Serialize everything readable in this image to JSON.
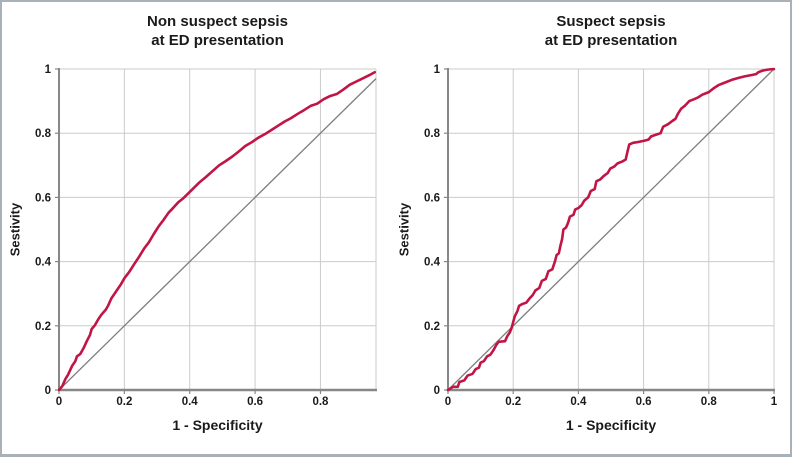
{
  "figure": {
    "background": "#FFFFFF",
    "border_color": "#A9B0B8"
  },
  "colors": {
    "curve": "#C01545",
    "reference_line": "#7D7D7D",
    "grid": "#CBCBCB",
    "axis": "#878787",
    "text": "#1A1A1A"
  },
  "chart_data": [
    {
      "type": "line",
      "title": "Non suspect sepsis\nat ED presentation",
      "xlabel": "1 - Specificity",
      "ylabel": "Sestivity",
      "xlim": [
        0,
        0.97
      ],
      "ylim": [
        0,
        1
      ],
      "x_ticks": [
        0,
        0.2,
        0.4,
        0.6,
        0.8
      ],
      "y_ticks": [
        0,
        0.2,
        0.4,
        0.6,
        0.8,
        1
      ],
      "grid": true,
      "legend": "none",
      "series": [
        {
          "name": "ROC curve",
          "color": "#C01545",
          "points": [
            [
              0,
              0
            ],
            [
              0.01,
              0.012
            ],
            [
              0.02,
              0.035
            ],
            [
              0.028,
              0.048
            ],
            [
              0.04,
              0.075
            ],
            [
              0.05,
              0.09
            ],
            [
              0.055,
              0.105
            ],
            [
              0.065,
              0.112
            ],
            [
              0.075,
              0.13
            ],
            [
              0.085,
              0.152
            ],
            [
              0.095,
              0.172
            ],
            [
              0.1,
              0.19
            ],
            [
              0.11,
              0.202
            ],
            [
              0.12,
              0.22
            ],
            [
              0.13,
              0.235
            ],
            [
              0.143,
              0.25
            ],
            [
              0.15,
              0.262
            ],
            [
              0.16,
              0.285
            ],
            [
              0.17,
              0.3
            ],
            [
              0.18,
              0.315
            ],
            [
              0.19,
              0.33
            ],
            [
              0.2,
              0.348
            ],
            [
              0.215,
              0.368
            ],
            [
              0.23,
              0.392
            ],
            [
              0.245,
              0.415
            ],
            [
              0.26,
              0.44
            ],
            [
              0.275,
              0.46
            ],
            [
              0.29,
              0.486
            ],
            [
              0.305,
              0.51
            ],
            [
              0.32,
              0.53
            ],
            [
              0.335,
              0.552
            ],
            [
              0.35,
              0.568
            ],
            [
              0.365,
              0.585
            ],
            [
              0.38,
              0.597
            ],
            [
              0.395,
              0.612
            ],
            [
              0.41,
              0.627
            ],
            [
              0.43,
              0.647
            ],
            [
              0.45,
              0.664
            ],
            [
              0.47,
              0.682
            ],
            [
              0.49,
              0.7
            ],
            [
              0.51,
              0.713
            ],
            [
              0.53,
              0.727
            ],
            [
              0.55,
              0.743
            ],
            [
              0.57,
              0.76
            ],
            [
              0.59,
              0.772
            ],
            [
              0.61,
              0.786
            ],
            [
              0.63,
              0.797
            ],
            [
              0.65,
              0.81
            ],
            [
              0.67,
              0.823
            ],
            [
              0.69,
              0.836
            ],
            [
              0.71,
              0.847
            ],
            [
              0.73,
              0.86
            ],
            [
              0.75,
              0.872
            ],
            [
              0.77,
              0.885
            ],
            [
              0.79,
              0.892
            ],
            [
              0.81,
              0.906
            ],
            [
              0.83,
              0.916
            ],
            [
              0.85,
              0.922
            ],
            [
              0.87,
              0.936
            ],
            [
              0.89,
              0.951
            ],
            [
              0.91,
              0.961
            ],
            [
              0.93,
              0.971
            ],
            [
              0.95,
              0.981
            ],
            [
              0.966,
              0.99
            ]
          ]
        },
        {
          "name": "Reference line",
          "color": "#7D7D7D",
          "points": [
            [
              0,
              0
            ],
            [
              0.97,
              0.97
            ]
          ]
        }
      ]
    },
    {
      "type": "line",
      "title": "Suspect sepsis\nat ED presentation",
      "xlabel": "1 - Specificity",
      "ylabel": "Sestivity",
      "xlim": [
        0,
        1
      ],
      "ylim": [
        0,
        1
      ],
      "x_ticks": [
        0,
        0.2,
        0.4,
        0.6,
        0.8,
        1
      ],
      "y_ticks": [
        0,
        0.2,
        0.4,
        0.6,
        0.8,
        1
      ],
      "grid": true,
      "legend": "none",
      "series": [
        {
          "name": "ROC curve",
          "color": "#C01545",
          "points": [
            [
              0,
              0
            ],
            [
              0.015,
              0.01
            ],
            [
              0.03,
              0.01
            ],
            [
              0.035,
              0.025
            ],
            [
              0.05,
              0.03
            ],
            [
              0.06,
              0.045
            ],
            [
              0.075,
              0.05
            ],
            [
              0.085,
              0.065
            ],
            [
              0.095,
              0.07
            ],
            [
              0.1,
              0.085
            ],
            [
              0.11,
              0.09
            ],
            [
              0.12,
              0.105
            ],
            [
              0.13,
              0.11
            ],
            [
              0.14,
              0.125
            ],
            [
              0.148,
              0.14
            ],
            [
              0.155,
              0.15
            ],
            [
              0.175,
              0.152
            ],
            [
              0.182,
              0.168
            ],
            [
              0.19,
              0.18
            ],
            [
              0.196,
              0.196
            ],
            [
              0.2,
              0.212
            ],
            [
              0.205,
              0.23
            ],
            [
              0.213,
              0.246
            ],
            [
              0.218,
              0.262
            ],
            [
              0.228,
              0.268
            ],
            [
              0.24,
              0.272
            ],
            [
              0.25,
              0.285
            ],
            [
              0.26,
              0.296
            ],
            [
              0.268,
              0.31
            ],
            [
              0.28,
              0.318
            ],
            [
              0.288,
              0.34
            ],
            [
              0.3,
              0.346
            ],
            [
              0.308,
              0.37
            ],
            [
              0.32,
              0.376
            ],
            [
              0.328,
              0.4
            ],
            [
              0.333,
              0.42
            ],
            [
              0.34,
              0.426
            ],
            [
              0.345,
              0.45
            ],
            [
              0.35,
              0.47
            ],
            [
              0.354,
              0.5
            ],
            [
              0.362,
              0.506
            ],
            [
              0.368,
              0.52
            ],
            [
              0.374,
              0.54
            ],
            [
              0.385,
              0.546
            ],
            [
              0.39,
              0.562
            ],
            [
              0.4,
              0.567
            ],
            [
              0.41,
              0.576
            ],
            [
              0.418,
              0.59
            ],
            [
              0.43,
              0.6
            ],
            [
              0.438,
              0.62
            ],
            [
              0.45,
              0.626
            ],
            [
              0.455,
              0.65
            ],
            [
              0.467,
              0.656
            ],
            [
              0.477,
              0.666
            ],
            [
              0.49,
              0.676
            ],
            [
              0.498,
              0.69
            ],
            [
              0.51,
              0.696
            ],
            [
              0.52,
              0.706
            ],
            [
              0.535,
              0.712
            ],
            [
              0.545,
              0.718
            ],
            [
              0.55,
              0.74
            ],
            [
              0.556,
              0.765
            ],
            [
              0.568,
              0.77
            ],
            [
              0.585,
              0.773
            ],
            [
              0.6,
              0.776
            ],
            [
              0.615,
              0.78
            ],
            [
              0.623,
              0.79
            ],
            [
              0.64,
              0.796
            ],
            [
              0.652,
              0.8
            ],
            [
              0.66,
              0.82
            ],
            [
              0.675,
              0.828
            ],
            [
              0.688,
              0.838
            ],
            [
              0.698,
              0.845
            ],
            [
              0.705,
              0.86
            ],
            [
              0.715,
              0.876
            ],
            [
              0.727,
              0.886
            ],
            [
              0.74,
              0.9
            ],
            [
              0.755,
              0.906
            ],
            [
              0.768,
              0.912
            ],
            [
              0.78,
              0.92
            ],
            [
              0.8,
              0.928
            ],
            [
              0.815,
              0.94
            ],
            [
              0.83,
              0.95
            ],
            [
              0.85,
              0.958
            ],
            [
              0.87,
              0.966
            ],
            [
              0.89,
              0.972
            ],
            [
              0.91,
              0.977
            ],
            [
              0.93,
              0.981
            ],
            [
              0.945,
              0.984
            ],
            [
              0.952,
              0.99
            ],
            [
              0.965,
              0.995
            ],
            [
              0.98,
              0.998
            ],
            [
              1,
              1
            ]
          ]
        },
        {
          "name": "Reference line",
          "color": "#7D7D7D",
          "points": [
            [
              0,
              0
            ],
            [
              1,
              1
            ]
          ]
        }
      ]
    }
  ]
}
